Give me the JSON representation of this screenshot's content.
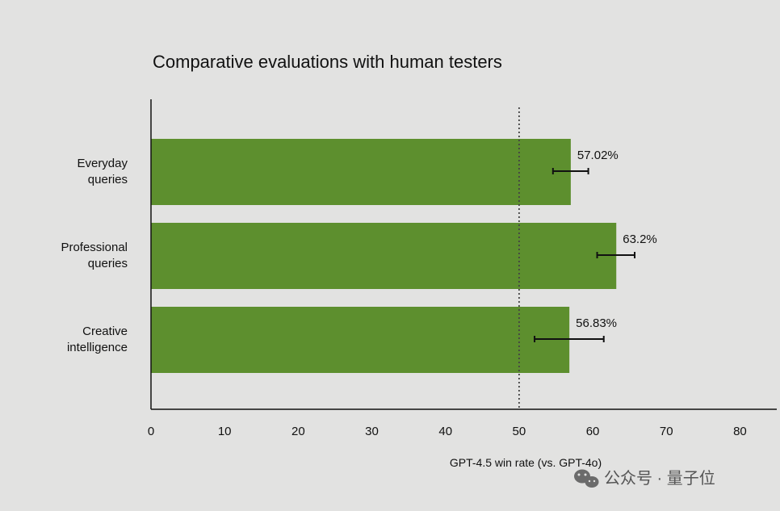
{
  "colors": {
    "background": "#e2e2e1",
    "bar": "#5d8f2e",
    "axis": "#111111",
    "text": "#111111",
    "reference_line": "#444444",
    "watermark": "#555555"
  },
  "chart_data": {
    "type": "bar",
    "orientation": "horizontal",
    "title": "Comparative evaluations with human testers",
    "xlabel": "GPT-4.5 win rate (vs. GPT-4o)",
    "ylabel": "",
    "categories": [
      [
        "Everyday",
        "queries"
      ],
      [
        "Professional",
        "queries"
      ],
      [
        "Creative",
        "intelligence"
      ]
    ],
    "values": [
      57.02,
      63.2,
      56.83
    ],
    "value_labels": [
      "57.02%",
      "63.2%",
      "56.83%"
    ],
    "error_bars": [
      [
        54.6,
        59.4
      ],
      [
        60.6,
        65.7
      ],
      [
        52.1,
        61.5
      ]
    ],
    "xlim": [
      0,
      85
    ],
    "xticks": [
      0,
      10,
      20,
      30,
      40,
      50,
      60,
      70,
      80
    ],
    "reference_line": 50,
    "grid": false,
    "legend": "none"
  },
  "watermark": {
    "icon": "wechat-icon",
    "text": "公众号 · 量子位"
  }
}
